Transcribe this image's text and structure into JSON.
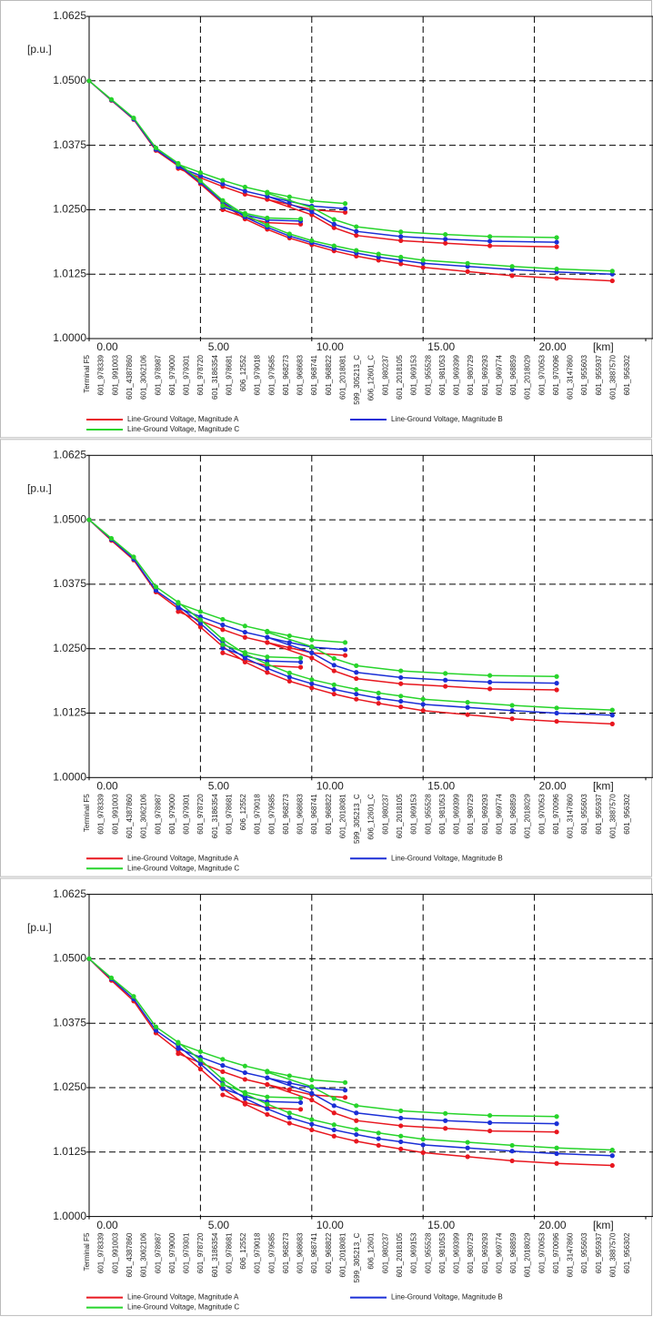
{
  "chart_data": [
    {
      "type": "line",
      "y_unit": "[p.u.]",
      "x_unit": "[km]",
      "ylim": [
        1.0,
        1.0625
      ],
      "yticks": [
        {
          "value": 1.0,
          "label": "1.0000"
        },
        {
          "value": 1.0125,
          "label": "1.0125"
        },
        {
          "value": 1.025,
          "label": "1.0250"
        },
        {
          "value": 1.0375,
          "label": "1.0375"
        },
        {
          "value": 1.05,
          "label": "1.0500"
        },
        {
          "value": 1.0625,
          "label": "1.0625"
        }
      ],
      "xlim": [
        0,
        25
      ],
      "xticks": [
        {
          "value": 0,
          "label": "0.00"
        },
        {
          "value": 5,
          "label": "5.00"
        },
        {
          "value": 10,
          "label": "10.00"
        },
        {
          "value": 15,
          "label": "15.00"
        },
        {
          "value": 20,
          "label": "20.00"
        },
        25
      ],
      "grid": true,
      "nodes": [
        "Terminal F5",
        "601_978339",
        "601_991003",
        "601_4387860",
        "601_3062106",
        "601_978987",
        "601_979000",
        "601_979301",
        "601_978720",
        "601_3186354",
        "601_978681",
        "606_12552",
        "601_979018",
        "601_979585",
        "601_968273",
        "601_968683",
        "601_968741",
        "601_968822",
        "601_2018081",
        "599_305213_C",
        "606_12601_C",
        "601_980237",
        "601_2018105",
        "601_969153",
        "601_955528",
        "601_981053",
        "601_969399",
        "601_980729",
        "601_969293",
        "601_969774",
        "601_968859",
        "601_2018029",
        "601_970053",
        "601_970096",
        "601_3147860",
        "601_955603",
        "601_955937",
        "601_3887570",
        "601_956302"
      ],
      "x": [
        0,
        1,
        2,
        3,
        4,
        5,
        6,
        7,
        8,
        9,
        10,
        11,
        12,
        13,
        14,
        15,
        17,
        19,
        21,
        23.5,
        null,
        4,
        5,
        6,
        7,
        8,
        9,
        10,
        11.5,
        null,
        8,
        10,
        11,
        12,
        14,
        16,
        18,
        21,
        null,
        6,
        7,
        8,
        9.5
      ],
      "series": [
        {
          "name": "Line-Ground Voltage, Magnitude A",
          "color": "#e8171f",
          "values": [
            1.05,
            1.0462,
            1.0425,
            1.0365,
            1.0335,
            1.03,
            1.0262,
            1.0232,
            1.0212,
            1.0195,
            1.0182,
            1.017,
            1.016,
            1.0152,
            1.0145,
            1.0138,
            1.013,
            1.0122,
            1.0117,
            1.0112,
            null,
            1.033,
            1.0312,
            1.0295,
            1.028,
            1.027,
            1.026,
            1.025,
            1.0245,
            null,
            1.027,
            1.024,
            1.0215,
            1.02,
            1.019,
            1.0185,
            1.018,
            1.0178,
            null,
            1.025,
            1.0235,
            1.0225,
            1.0222
          ]
        },
        {
          "name": "Line-Ground Voltage, Magnitude B",
          "color": "#1b2fd6",
          "values": [
            1.05,
            1.0463,
            1.0426,
            1.0367,
            1.0337,
            1.0303,
            1.0265,
            1.0236,
            1.0216,
            1.0199,
            1.0186,
            1.0175,
            1.0166,
            1.0158,
            1.0152,
            1.0146,
            1.014,
            1.0134,
            1.0129,
            1.0125,
            null,
            1.0333,
            1.0316,
            1.03,
            1.0286,
            1.0276,
            1.0266,
            1.0257,
            1.0252,
            null,
            1.0276,
            1.0246,
            1.0222,
            1.0208,
            1.0198,
            1.0193,
            1.0189,
            1.0187,
            null,
            1.0255,
            1.024,
            1.023,
            1.0228
          ]
        },
        {
          "name": "Line-Ground Voltage, Magnitude C",
          "color": "#27d42b",
          "values": [
            1.05,
            1.0464,
            1.0428,
            1.037,
            1.034,
            1.0306,
            1.0268,
            1.024,
            1.022,
            1.0203,
            1.019,
            1.018,
            1.0171,
            1.0164,
            1.0158,
            1.0152,
            1.0146,
            1.014,
            1.0135,
            1.0131,
            null,
            1.0338,
            1.0322,
            1.0307,
            1.0294,
            1.0284,
            1.0275,
            1.0267,
            1.0262,
            null,
            1.0282,
            1.0254,
            1.0231,
            1.0217,
            1.0207,
            1.0202,
            1.0198,
            1.0196,
            null,
            1.0258,
            1.0243,
            1.0234,
            1.0232
          ]
        }
      ]
    },
    {
      "type": "line",
      "y_unit": "[p.u.]",
      "x_unit": "[km]",
      "ylim": [
        1.0,
        1.0625
      ],
      "yticks": [
        {
          "value": 1.0,
          "label": "1.0000"
        },
        {
          "value": 1.0125,
          "label": "1.0125"
        },
        {
          "value": 1.025,
          "label": "1.0250"
        },
        {
          "value": 1.0375,
          "label": "1.0375"
        },
        {
          "value": 1.05,
          "label": "1.0500"
        },
        {
          "value": 1.0625,
          "label": "1.0625"
        }
      ],
      "xlim": [
        0,
        25
      ],
      "xticks": [
        {
          "value": 0,
          "label": "0.00"
        },
        {
          "value": 5,
          "label": "5.00"
        },
        {
          "value": 10,
          "label": "10.00"
        },
        {
          "value": 15,
          "label": "15.00"
        },
        {
          "value": 20,
          "label": "20.00"
        },
        25
      ],
      "grid": true,
      "nodes": [
        "Terminal F5",
        "601_978339",
        "601_991003",
        "601_4387860",
        "601_3062106",
        "601_978987",
        "601_979000",
        "601_979301",
        "601_978720",
        "601_3186354",
        "601_978681",
        "606_12552",
        "601_979018",
        "601_979585",
        "601_968273",
        "601_968683",
        "601_968741",
        "601_968822",
        "601_2018081",
        "599_305213_C",
        "606_12601_C",
        "601_980237",
        "601_2018105",
        "601_969153",
        "601_955528",
        "601_981053",
        "601_969399",
        "601_980729",
        "601_969293",
        "601_969774",
        "601_968859",
        "601_2018029",
        "601_970053",
        "601_970096",
        "601_3147860",
        "601_955603",
        "601_955937",
        "601_3887570",
        "601_956302"
      ],
      "x": [
        0,
        1,
        2,
        3,
        4,
        5,
        6,
        7,
        8,
        9,
        10,
        11,
        12,
        13,
        14,
        15,
        17,
        19,
        21,
        23.5,
        null,
        4,
        5,
        6,
        7,
        8,
        9,
        10,
        11.5,
        null,
        8,
        10,
        11,
        12,
        14,
        16,
        18,
        21,
        null,
        6,
        7,
        8,
        9.5
      ],
      "series": [
        {
          "name": "Line-Ground Voltage, Magnitude A",
          "color": "#e8171f",
          "values": [
            1.05,
            1.046,
            1.0422,
            1.036,
            1.0328,
            1.0292,
            1.0254,
            1.0224,
            1.0204,
            1.0187,
            1.0174,
            1.0162,
            1.0152,
            1.0144,
            1.0137,
            1.013,
            1.0122,
            1.0114,
            1.0109,
            1.0104,
            null,
            1.0322,
            1.0304,
            1.0287,
            1.0272,
            1.0262,
            1.0252,
            1.0242,
            1.0237,
            null,
            1.0262,
            1.0232,
            1.0207,
            1.0192,
            1.0182,
            1.0177,
            1.0172,
            1.017,
            null,
            1.0242,
            1.0227,
            1.0217,
            1.0214
          ]
        },
        {
          "name": "Line-Ground Voltage, Magnitude B",
          "color": "#1b2fd6",
          "values": [
            1.05,
            1.0462,
            1.0424,
            1.0363,
            1.0333,
            1.0299,
            1.0261,
            1.0232,
            1.0212,
            1.0195,
            1.0182,
            1.0171,
            1.0162,
            1.0154,
            1.0148,
            1.0142,
            1.0136,
            1.013,
            1.0125,
            1.0121,
            null,
            1.0329,
            1.0312,
            1.0296,
            1.0282,
            1.0272,
            1.0262,
            1.0253,
            1.0248,
            null,
            1.0272,
            1.0242,
            1.0218,
            1.0204,
            1.0194,
            1.0189,
            1.0185,
            1.0183,
            null,
            1.0251,
            1.0236,
            1.0226,
            1.0224
          ]
        },
        {
          "name": "Line-Ground Voltage, Magnitude C",
          "color": "#27d42b",
          "values": [
            1.05,
            1.0464,
            1.0428,
            1.037,
            1.034,
            1.0306,
            1.0268,
            1.024,
            1.022,
            1.0203,
            1.019,
            1.018,
            1.0171,
            1.0164,
            1.0158,
            1.0152,
            1.0146,
            1.014,
            1.0135,
            1.0131,
            null,
            1.0338,
            1.0322,
            1.0307,
            1.0294,
            1.0284,
            1.0275,
            1.0267,
            1.0262,
            null,
            1.0282,
            1.0254,
            1.0231,
            1.0217,
            1.0207,
            1.0202,
            1.0198,
            1.0196,
            null,
            1.0258,
            1.0243,
            1.0234,
            1.0232
          ]
        }
      ]
    },
    {
      "type": "line",
      "y_unit": "[p.u.]",
      "x_unit": "[km]",
      "ylim": [
        1.0,
        1.0625
      ],
      "yticks": [
        {
          "value": 1.0,
          "label": "1.0000"
        },
        {
          "value": 1.0125,
          "label": "1.0125"
        },
        {
          "value": 1.025,
          "label": "1.0250"
        },
        {
          "value": 1.0375,
          "label": "1.0375"
        },
        {
          "value": 1.05,
          "label": "1.0500"
        },
        {
          "value": 1.0625,
          "label": "1.0625"
        }
      ],
      "xlim": [
        0,
        25
      ],
      "xticks": [
        {
          "value": 0,
          "label": "0.00"
        },
        {
          "value": 5,
          "label": "5.00"
        },
        {
          "value": 10,
          "label": "10.00"
        },
        {
          "value": 15,
          "label": "15.00"
        },
        {
          "value": 20,
          "label": "20.00"
        },
        25
      ],
      "grid": true,
      "nodes": [
        "Terminal F5",
        "601_978339",
        "601_991003",
        "601_4387860",
        "601_3062106",
        "601_978987",
        "601_979000",
        "601_979301",
        "601_978720",
        "601_3186354",
        "601_978681",
        "606_12552",
        "601_979018",
        "601_979585",
        "601_968273",
        "601_968683",
        "601_968741",
        "601_968822",
        "601_2018081",
        "599_305213_C",
        "606_12601",
        "601_980237",
        "601_2018105",
        "601_969153",
        "601_955528",
        "601_981053",
        "601_969399",
        "601_980729",
        "601_969293",
        "601_969774",
        "601_968859",
        "601_2018029",
        "601_970053",
        "601_970096",
        "601_3147860",
        "601_955603",
        "601_955937",
        "601_3887570",
        "601_956302"
      ],
      "x": [
        0,
        1,
        2,
        3,
        4,
        5,
        6,
        7,
        8,
        9,
        10,
        11,
        12,
        13,
        14,
        15,
        17,
        19,
        21,
        23.5,
        null,
        4,
        5,
        6,
        7,
        8,
        9,
        10,
        11.5,
        null,
        8,
        10,
        11,
        12,
        14,
        16,
        18,
        21,
        null,
        6,
        7,
        8,
        9.5
      ],
      "series": [
        {
          "name": "Line-Ground Voltage, Magnitude A",
          "color": "#e8171f",
          "values": [
            1.05,
            1.0458,
            1.0418,
            1.0356,
            1.0322,
            1.0286,
            1.0248,
            1.0218,
            1.0198,
            1.0181,
            1.0168,
            1.0156,
            1.0146,
            1.0138,
            1.0131,
            1.0124,
            1.0116,
            1.0108,
            1.0103,
            1.0099,
            null,
            1.0316,
            1.0298,
            1.0281,
            1.0266,
            1.0256,
            1.0246,
            1.0236,
            1.0231,
            null,
            1.0256,
            1.0226,
            1.0201,
            1.0186,
            1.0176,
            1.0171,
            1.0166,
            1.0164,
            null,
            1.0236,
            1.0221,
            1.0211,
            1.0208
          ]
        },
        {
          "name": "Line-Ground Voltage, Magnitude B",
          "color": "#1b2fd6",
          "values": [
            1.05,
            1.0461,
            1.0422,
            1.0361,
            1.0331,
            1.0296,
            1.0258,
            1.0229,
            1.0209,
            1.0192,
            1.0179,
            1.0168,
            1.0159,
            1.0151,
            1.0145,
            1.0139,
            1.0133,
            1.0127,
            1.0122,
            1.0118,
            null,
            1.0326,
            1.0309,
            1.0293,
            1.0279,
            1.0269,
            1.0259,
            1.025,
            1.0245,
            null,
            1.0269,
            1.0239,
            1.0215,
            1.0201,
            1.0191,
            1.0186,
            1.0182,
            1.018,
            null,
            1.0248,
            1.0233,
            1.0223,
            1.0221
          ]
        },
        {
          "name": "Line-Ground Voltage, Magnitude C",
          "color": "#27d42b",
          "values": [
            1.05,
            1.0463,
            1.0427,
            1.0368,
            1.0338,
            1.0304,
            1.0266,
            1.0238,
            1.0218,
            1.0201,
            1.0188,
            1.0178,
            1.0169,
            1.0162,
            1.0156,
            1.015,
            1.0144,
            1.0138,
            1.0133,
            1.0129,
            null,
            1.0336,
            1.032,
            1.0305,
            1.0292,
            1.0282,
            1.0273,
            1.0265,
            1.026,
            null,
            1.028,
            1.0252,
            1.0229,
            1.0215,
            1.0205,
            1.02,
            1.0196,
            1.0194,
            null,
            1.0256,
            1.0241,
            1.0232,
            1.023
          ]
        }
      ]
    }
  ]
}
